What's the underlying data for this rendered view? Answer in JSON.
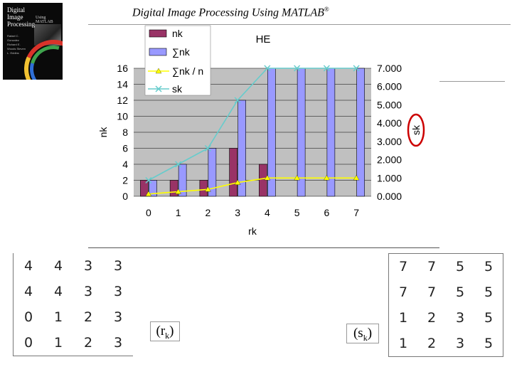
{
  "header": {
    "title": "Digital Image Processing Using MATLAB",
    "registered": "®"
  },
  "cover": {
    "title_line1": "Digital",
    "title_line2": "Image",
    "title_line3": "Processing",
    "subtitle": "Using MATLAB",
    "authors": "Rafael C. Gonzalez Richard E. Woods Steven L. Eddins"
  },
  "chart_data": {
    "type": "bar",
    "title": "HE",
    "xlabel": "rk",
    "ylabel": "nk",
    "y2label": "sk",
    "categories": [
      "0",
      "1",
      "2",
      "3",
      "4",
      "5",
      "6",
      "7"
    ],
    "ylim": [
      0,
      16
    ],
    "yticks": [
      "0",
      "2",
      "4",
      "6",
      "8",
      "10",
      "12",
      "14",
      "16"
    ],
    "y2lim": [
      0,
      7
    ],
    "y2ticks": [
      "0.000",
      "1.000",
      "2.000",
      "3.000",
      "4.000",
      "5.000",
      "6.000",
      "7.000"
    ],
    "grid": true,
    "legend_position": "top-left",
    "series": [
      {
        "name": "nk",
        "kind": "bar",
        "color": "#993366",
        "values": [
          2,
          2,
          2,
          6,
          4,
          0,
          0,
          0
        ]
      },
      {
        "name": "∑nk",
        "kind": "bar",
        "color": "#9999ff",
        "values": [
          2,
          4,
          6,
          12,
          16,
          16,
          16,
          16
        ]
      },
      {
        "name": "∑nk / n",
        "kind": "line",
        "axis": "y2",
        "color": "#ffff00",
        "values": [
          0.125,
          0.25,
          0.375,
          0.75,
          1,
          1,
          1,
          1
        ]
      },
      {
        "name": "sk",
        "kind": "line",
        "axis": "y2",
        "color": "#66cccc",
        "values": [
          0.875,
          1.75,
          2.625,
          5.25,
          7,
          7,
          7,
          7
        ]
      }
    ]
  },
  "left_matrix": {
    "rows": [
      [
        "4",
        "4",
        "3",
        "3"
      ],
      [
        "4",
        "4",
        "3",
        "3"
      ],
      [
        "0",
        "1",
        "2",
        "3"
      ],
      [
        "0",
        "1",
        "2",
        "3"
      ]
    ]
  },
  "right_matrix": {
    "rows": [
      [
        "7",
        "7",
        "5",
        "5"
      ],
      [
        "7",
        "7",
        "5",
        "5"
      ],
      [
        "1",
        "2",
        "3",
        "5"
      ],
      [
        "1",
        "2",
        "3",
        "5"
      ]
    ]
  },
  "labels": {
    "rk_open": "(r",
    "rk_sub": "k",
    "rk_close": ")",
    "sk_open": "(s",
    "sk_sub": "k",
    "sk_close": ")"
  }
}
